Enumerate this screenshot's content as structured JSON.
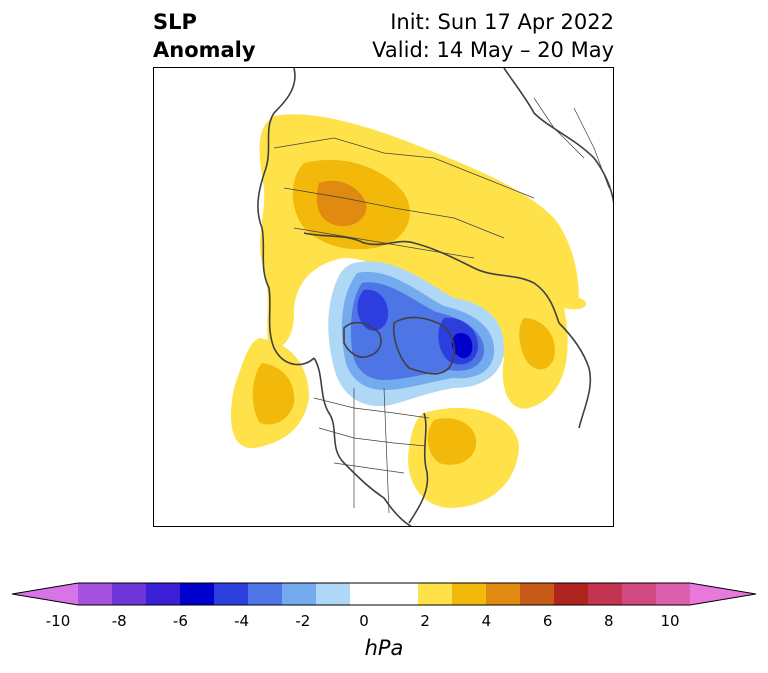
{
  "title": {
    "variable": "SLP",
    "field": "Anomaly",
    "init": "Init: Sun 17 Apr 2022",
    "valid": "Valid: 14 May – 20 May"
  },
  "colorbar": {
    "unit": "hPa",
    "ticks": [
      "-10",
      "-8",
      "-6",
      "-4",
      "-2",
      "0",
      "2",
      "4",
      "6",
      "8",
      "10"
    ],
    "colors": [
      "#d674e8",
      "#a552e0",
      "#6f35d8",
      "#3a1fd6",
      "#0000cd",
      "#2c3fde",
      "#4e75e6",
      "#74aaee",
      "#aed8f6",
      "#ffffff",
      "#ffffff",
      "#ffe24a",
      "#f2b90a",
      "#e08a12",
      "#c85a18",
      "#b0241f",
      "#c43350",
      "#d04a80",
      "#dd60ac",
      "#e878d9"
    ]
  },
  "map": {
    "projection": "polar-stereographic",
    "region": "Northern Hemisphere",
    "land_outline_color": "#404040"
  }
}
